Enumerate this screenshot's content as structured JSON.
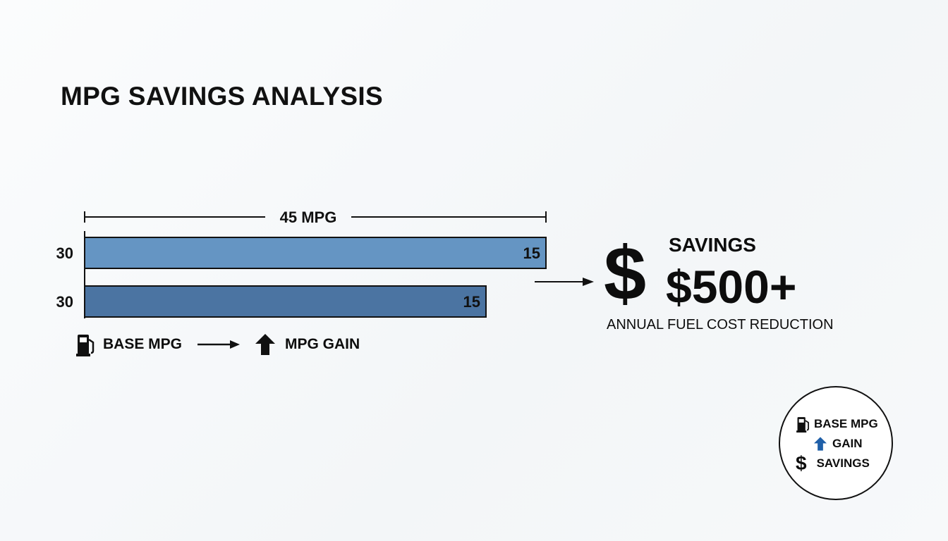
{
  "title": "MPG SAVINGS ANALYSIS",
  "chart_data": {
    "type": "bar",
    "orientation": "horizontal",
    "total_label": "45 MPG",
    "total_value": 45,
    "bars": [
      {
        "base_label": "30",
        "base": 30,
        "gain_label": "15",
        "gain": 15,
        "color": "#6595c3"
      },
      {
        "base_label": "30",
        "base": 30,
        "gain_label": "15",
        "gain": 15,
        "color": "#4b74a2"
      }
    ],
    "bar_length_fraction": [
      1.0,
      0.87
    ]
  },
  "legend": {
    "base_label": "BASE MPG",
    "gain_label": "MPG GAIN",
    "base_icon": "fuel-pump-icon",
    "arrow_icon": "arrow-right-icon",
    "gain_icon": "arrow-up-icon"
  },
  "savings": {
    "symbol": "$",
    "label": "SAVINGS",
    "value": "$500+",
    "description": "ANNUAL FUEL COST REDUCTION"
  },
  "key": {
    "base_label": "BASE MPG",
    "gain_label": "GAIN",
    "savings_label": "SAVINGS",
    "savings_symbol": "$",
    "gain_icon_color": "#1f5fa8"
  }
}
